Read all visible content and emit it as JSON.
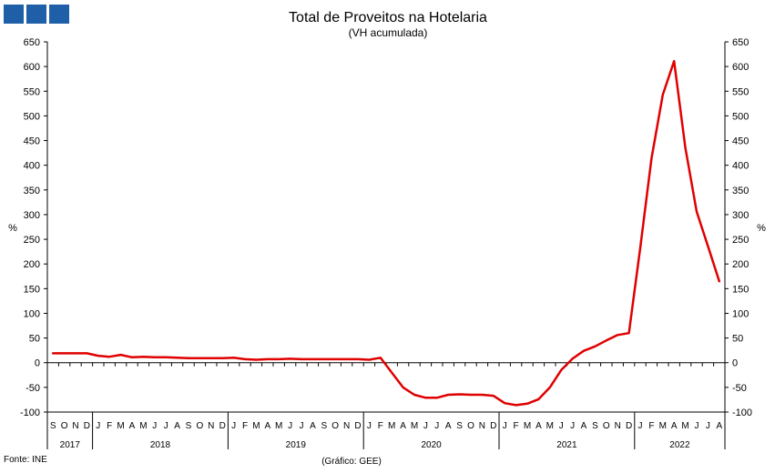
{
  "colors": {
    "line": "#e00000",
    "axis": "#000000",
    "logo": "#1f5fa8"
  },
  "logo_icon": "ine-logo-icon",
  "chart_data": {
    "type": "line",
    "title": "Total de Proveitos na Hotelaria",
    "subtitle": "(VH acumulada)",
    "ylabel": "%",
    "ylabel_right": "%",
    "ylim": [
      -100,
      650
    ],
    "yticks": [
      -100,
      -50,
      0,
      50,
      100,
      150,
      200,
      250,
      300,
      350,
      400,
      450,
      500,
      550,
      600,
      650
    ],
    "grid": false,
    "legend": "none",
    "month_labels": [
      "S",
      "O",
      "N",
      "D",
      "J",
      "F",
      "M",
      "A",
      "M",
      "J",
      "J",
      "A",
      "S",
      "O",
      "N",
      "D",
      "J",
      "F",
      "M",
      "A",
      "M",
      "J",
      "J",
      "A",
      "S",
      "O",
      "N",
      "D",
      "J",
      "F",
      "M",
      "A",
      "M",
      "J",
      "J",
      "A",
      "S",
      "O",
      "N",
      "D",
      "J",
      "F",
      "M",
      "A",
      "M",
      "J",
      "J",
      "A",
      "S",
      "O",
      "N",
      "D",
      "J",
      "F",
      "M",
      "A",
      "M",
      "J",
      "J",
      "A"
    ],
    "years": [
      {
        "label": "2017",
        "start": 0,
        "count": 4
      },
      {
        "label": "2018",
        "start": 4,
        "count": 12
      },
      {
        "label": "2019",
        "start": 16,
        "count": 12
      },
      {
        "label": "2020",
        "start": 28,
        "count": 12
      },
      {
        "label": "2021",
        "start": 40,
        "count": 12
      },
      {
        "label": "2022",
        "start": 52,
        "count": 8
      }
    ],
    "series": [
      {
        "values": [
          19,
          19,
          19,
          19,
          14,
          12,
          16,
          11,
          12,
          11,
          11,
          10,
          9,
          9,
          9,
          9,
          10,
          7,
          6,
          7,
          7,
          8,
          7,
          7,
          7,
          7,
          7,
          7,
          6,
          10,
          -20,
          -50,
          -65,
          -71,
          -71,
          -65,
          -64,
          -65,
          -65,
          -67,
          -82,
          -86,
          -83,
          -74,
          -50,
          -15,
          8,
          24,
          33,
          45,
          56,
          60,
          232,
          414,
          543,
          611,
          435,
          306,
          236,
          165
        ]
      }
    ]
  },
  "footer": {
    "source": "Fonte: INE",
    "credit": "(Gráfico: GEE)"
  }
}
